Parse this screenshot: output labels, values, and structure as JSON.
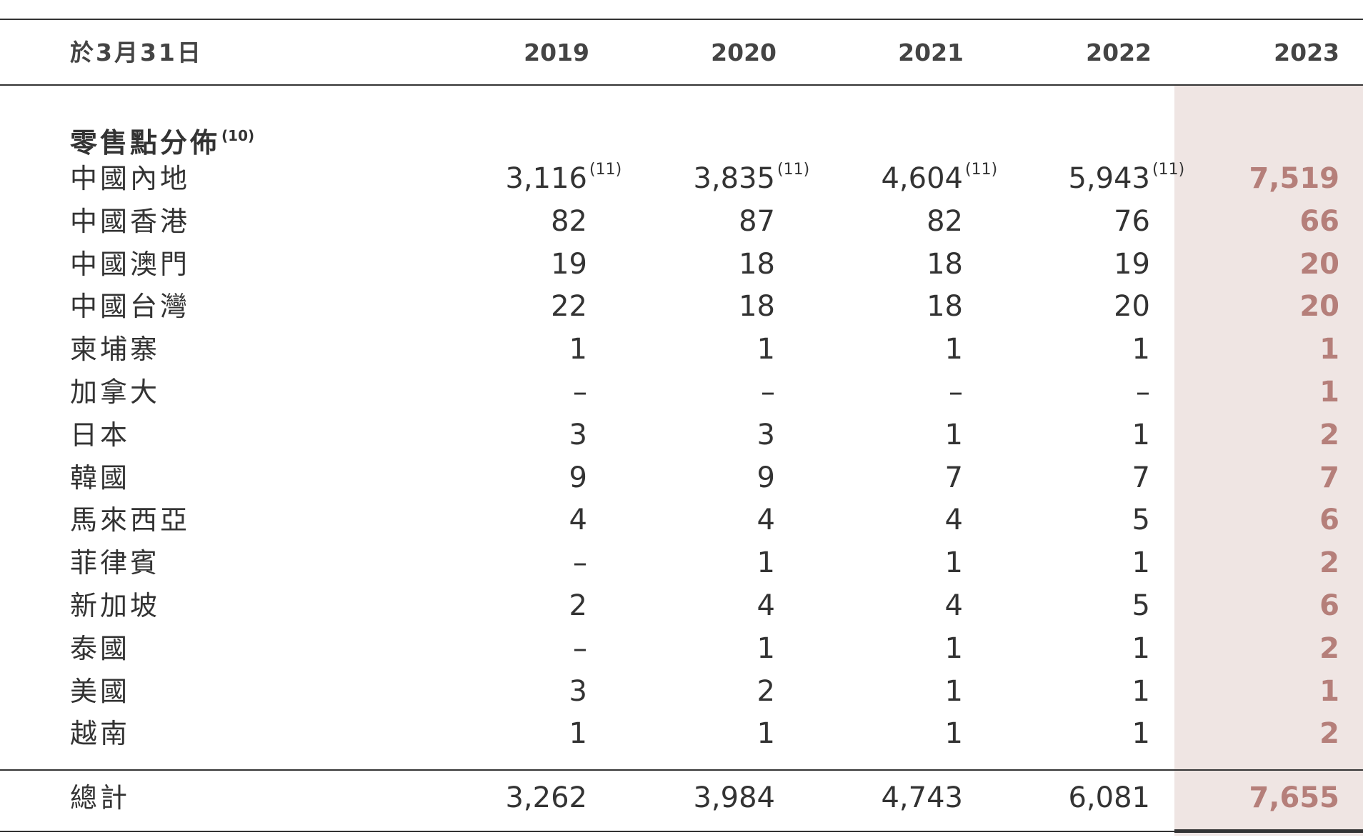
{
  "table": {
    "header_label": "於3月31日",
    "years": [
      "2019",
      "2020",
      "2021",
      "2022",
      "2023"
    ],
    "section_title": "零售點分佈",
    "section_note": "(10)",
    "value_note": "(11)",
    "rows": [
      {
        "label": "中國內地",
        "values": [
          "3,116",
          "3,835",
          "4,604",
          "5,943",
          "7,519"
        ],
        "notes": [
          "(11)",
          "(11)",
          "(11)",
          "(11)",
          ""
        ]
      },
      {
        "label": "中國香港",
        "values": [
          "82",
          "87",
          "82",
          "76",
          "66"
        ],
        "notes": [
          "",
          "",
          "",
          "",
          ""
        ]
      },
      {
        "label": "中國澳門",
        "values": [
          "19",
          "18",
          "18",
          "19",
          "20"
        ],
        "notes": [
          "",
          "",
          "",
          "",
          ""
        ]
      },
      {
        "label": "中國台灣",
        "values": [
          "22",
          "18",
          "18",
          "20",
          "20"
        ],
        "notes": [
          "",
          "",
          "",
          "",
          ""
        ]
      },
      {
        "label": "柬埔寨",
        "values": [
          "1",
          "1",
          "1",
          "1",
          "1"
        ],
        "notes": [
          "",
          "",
          "",
          "",
          ""
        ]
      },
      {
        "label": "加拿大",
        "values": [
          "–",
          "–",
          "–",
          "–",
          "1"
        ],
        "notes": [
          "",
          "",
          "",
          "",
          ""
        ]
      },
      {
        "label": "日本",
        "values": [
          "3",
          "3",
          "1",
          "1",
          "2"
        ],
        "notes": [
          "",
          "",
          "",
          "",
          ""
        ]
      },
      {
        "label": "韓國",
        "values": [
          "9",
          "9",
          "7",
          "7",
          "7"
        ],
        "notes": [
          "",
          "",
          "",
          "",
          ""
        ]
      },
      {
        "label": "馬來西亞",
        "values": [
          "4",
          "4",
          "4",
          "5",
          "6"
        ],
        "notes": [
          "",
          "",
          "",
          "",
          ""
        ]
      },
      {
        "label": "菲律賓",
        "values": [
          "–",
          "1",
          "1",
          "1",
          "2"
        ],
        "notes": [
          "",
          "",
          "",
          "",
          ""
        ]
      },
      {
        "label": "新加坡",
        "values": [
          "2",
          "4",
          "4",
          "5",
          "6"
        ],
        "notes": [
          "",
          "",
          "",
          "",
          ""
        ]
      },
      {
        "label": "泰國",
        "values": [
          "–",
          "1",
          "1",
          "1",
          "2"
        ],
        "notes": [
          "",
          "",
          "",
          "",
          ""
        ]
      },
      {
        "label": "美國",
        "values": [
          "3",
          "2",
          "1",
          "1",
          "1"
        ],
        "notes": [
          "",
          "",
          "",
          "",
          ""
        ]
      },
      {
        "label": "越南",
        "values": [
          "1",
          "1",
          "1",
          "1",
          "2"
        ],
        "notes": [
          "",
          "",
          "",
          "",
          ""
        ]
      }
    ],
    "total": {
      "label": "總計",
      "values": [
        "3,262",
        "3,984",
        "4,743",
        "6,081",
        "7,655"
      ]
    }
  },
  "colors": {
    "highlight_bg": "#efe5e3",
    "highlight_text": "#b57f7a",
    "text": "#333333",
    "rule": "#333333"
  }
}
